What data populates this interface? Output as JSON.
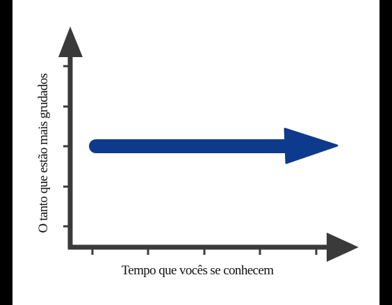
{
  "axes": {
    "y_label": "O tanto que estão mais grudados",
    "x_label": "Tempo que vocês se conhecem"
  }
}
